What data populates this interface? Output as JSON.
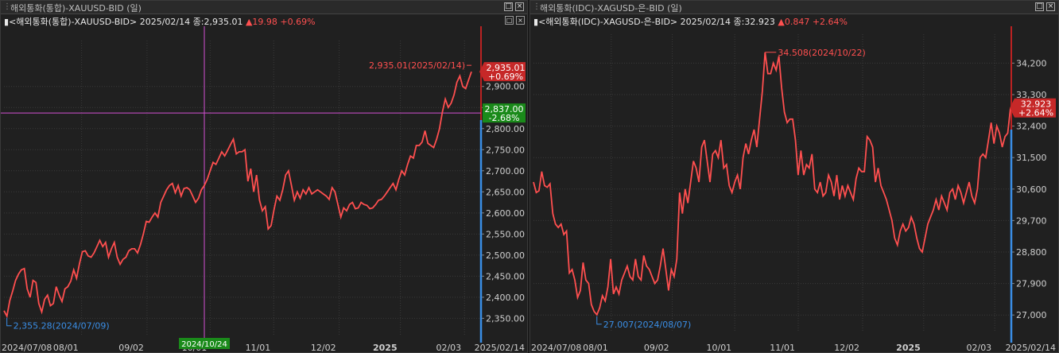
{
  "panels": [
    {
      "window_title": "해외통화(통합)-XAUUSD-BID (일)",
      "info": {
        "symbol": "<해외통화(통합)-XAUUSD-BID>",
        "date": "2025/02/14",
        "close_label": "종:2,935.01",
        "change": "▲19.98",
        "change_pct": "+0.69%"
      },
      "last_price_label": "2,935.01",
      "last_change_label": "+0.69%",
      "high_note": "2,935.01(2025/02/14)",
      "low_note": "2,355.28(2024/07/09)",
      "crosshair_price_label": "2,837.00",
      "crosshair_pct_label": "-2.68%",
      "crosshair_date_label": "2024/10/24",
      "x_start_label": "2024/07/08",
      "x_end_label": "2025/02/14",
      "x_labels": [
        "08/01",
        "09/02",
        "10/01",
        "11/01",
        "12/02",
        "2025",
        "02/03"
      ],
      "chart_data": {
        "type": "line",
        "series": [
          {
            "values": [
              2368,
              2355,
              2392,
              2415,
              2440,
              2455,
              2465,
              2468,
              2420,
              2400,
              2440,
              2435,
              2385,
              2365,
              2395,
              2405,
              2380,
              2385,
              2425,
              2405,
              2390,
              2420,
              2425,
              2438,
              2465,
              2445,
              2480,
              2508,
              2510,
              2498,
              2495,
              2505,
              2520,
              2535,
              2520,
              2530,
              2495,
              2515,
              2530,
              2495,
              2478,
              2490,
              2495,
              2510,
              2515,
              2515,
              2505,
              2525,
              2550,
              2580,
              2578,
              2590,
              2600,
              2590,
              2625,
              2640,
              2655,
              2665,
              2670,
              2648,
              2665,
              2640,
              2658,
              2660,
              2655,
              2640,
              2625,
              2635,
              2655,
              2665,
              2680,
              2700,
              2720,
              2715,
              2730,
              2745,
              2735,
              2748,
              2762,
              2775,
              2740,
              2745,
              2745,
              2750,
              2675,
              2705,
              2650,
              2690,
              2630,
              2605,
              2615,
              2562,
              2570,
              2608,
              2640,
              2630,
              2655,
              2690,
              2700,
              2665,
              2630,
              2650,
              2635,
              2655,
              2645,
              2660,
              2645,
              2650,
              2655,
              2650,
              2645,
              2640,
              2632,
              2660,
              2650,
              2620,
              2590,
              2612,
              2605,
              2620,
              2625,
              2610,
              2612,
              2625,
              2620,
              2618,
              2610,
              2612,
              2620,
              2630,
              2632,
              2640,
              2650,
              2660,
              2670,
              2655,
              2680,
              2700,
              2690,
              2715,
              2735,
              2730,
              2760,
              2760,
              2768,
              2795,
              2765,
              2760,
              2755,
              2775,
              2800,
              2840,
              2870,
              2850,
              2860,
              2880,
              2910,
              2925,
              2900,
              2895,
              2915,
              2935
            ]
          }
        ],
        "ylim": [
          2330,
          2990
        ],
        "y_ticks": [
          "2,900.00",
          "2,850.00",
          "2,800.00",
          "2,750.00",
          "2,700.00",
          "2,650.00",
          "2,600.00",
          "2,550.00",
          "2,500.00",
          "2,450.00",
          "2,400.00",
          "2,350.00"
        ],
        "y_tick_values": [
          2900,
          2850,
          2800,
          2750,
          2700,
          2650,
          2600,
          2550,
          2500,
          2450,
          2400,
          2350
        ],
        "crosshair_price": 2837,
        "crosshair_index": 69
      }
    },
    {
      "window_title": "해외통화(IDC)-XAGUSD-은-BID (일)",
      "info": {
        "symbol": "<해외통화(IDC)-XAGUSD-은-BID>",
        "date": "2025/02/14",
        "close_label": "종:32.923",
        "change": "▲0.847",
        "change_pct": "+2.64%"
      },
      "last_price_label": "32.923",
      "last_change_label": "+2.64%",
      "high_note": "34.508(2024/10/22)",
      "low_note": "27.007(2024/08/07)",
      "x_start_label": "2024/07/08",
      "x_end_label": "2025/02/14",
      "x_labels": [
        "08/01",
        "09/02",
        "10/01",
        "11/01",
        "12/02",
        "2025",
        "02/03"
      ],
      "chart_data": {
        "type": "line",
        "series": [
          {
            "values": [
              30.8,
              30.5,
              30.55,
              31.1,
              30.7,
              30.65,
              30.75,
              29.9,
              29.6,
              29.5,
              29.6,
              29.3,
              29.4,
              28.2,
              28.3,
              28.0,
              27.5,
              27.7,
              28.5,
              28.0,
              27.9,
              27.3,
              27.1,
              27.01,
              27.2,
              27.55,
              27.4,
              27.8,
              28.6,
              27.6,
              27.8,
              27.6,
              28.0,
              28.2,
              28.4,
              28.1,
              28.0,
              28.6,
              28.1,
              28.0,
              28.7,
              28.4,
              28.3,
              28.1,
              27.9,
              28.0,
              28.4,
              28.9,
              28.3,
              27.7,
              28.3,
              28.1,
              28.6,
              30.5,
              29.9,
              30.6,
              30.2,
              30.8,
              31.4,
              31.2,
              30.8,
              31.8,
              32.0,
              31.4,
              30.8,
              31.6,
              31.7,
              31.5,
              32.0,
              31.2,
              31.3,
              30.7,
              30.5,
              30.8,
              31.0,
              30.6,
              31.5,
              31.9,
              31.6,
              32.0,
              32.3,
              31.8,
              32.6,
              33.4,
              34.51,
              33.9,
              33.9,
              34.2,
              34.0,
              34.4,
              33.5,
              32.8,
              32.5,
              32.6,
              32.6,
              32.0,
              31.0,
              31.7,
              31.0,
              31.3,
              31.2,
              31.6,
              30.6,
              30.5,
              30.8,
              30.4,
              30.5,
              31.0,
              30.8,
              30.4,
              31.0,
              30.3,
              30.7,
              30.4,
              30.7,
              30.5,
              30.3,
              30.9,
              31.2,
              31.1,
              31.1,
              32.1,
              32.0,
              31.8,
              30.8,
              31.2,
              30.7,
              30.5,
              30.3,
              30.0,
              29.7,
              29.2,
              29.0,
              29.4,
              29.6,
              29.4,
              29.5,
              29.8,
              29.6,
              29.2,
              28.9,
              28.8,
              29.2,
              29.6,
              29.8,
              30.0,
              30.3,
              30.0,
              30.4,
              30.2,
              30.0,
              30.5,
              30.6,
              30.3,
              30.7,
              30.5,
              30.2,
              30.5,
              30.8,
              30.4,
              30.2,
              30.6,
              31.5,
              31.6,
              31.5,
              32.0,
              32.5,
              31.9,
              32.4,
              32.2,
              31.8,
              32.1,
              32.2,
              32.92
            ]
          }
        ],
        "ylim": [
          26.8,
          34.8
        ],
        "y_ticks": [
          "34,200",
          "33,300",
          "32,400",
          "31,500",
          "30,600",
          "29,700",
          "28,800",
          "27,900",
          "27,000"
        ],
        "y_tick_values": [
          34.2,
          33.3,
          32.4,
          31.5,
          30.6,
          29.7,
          28.8,
          27.9,
          27.0
        ]
      }
    }
  ],
  "colors": {
    "line": "#ff4f4f",
    "grid": "#3a3a3a",
    "axis_text": "#cfcfcf",
    "blue": "#3a8ee6",
    "red_box": "#c62828",
    "green_box": "#1a8a1a",
    "crosshair": "#d24fd2"
  }
}
